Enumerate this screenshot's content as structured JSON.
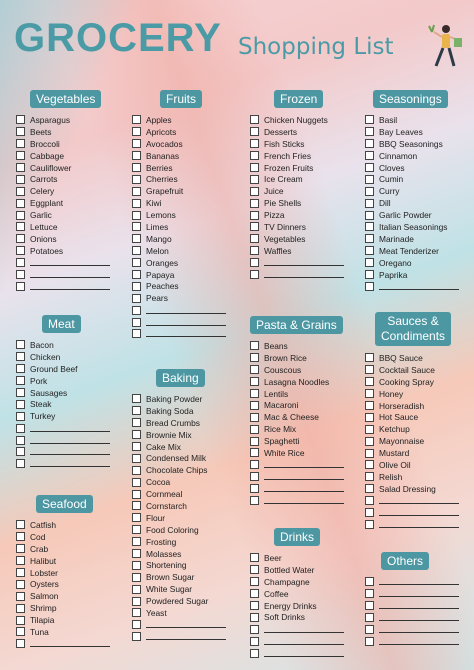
{
  "title": "GROCERY",
  "subtitle": "Shopping List",
  "sections": {
    "vegetables": {
      "title": "Vegetables",
      "items": [
        "Asparagus",
        "Beets",
        "Broccoli",
        "Cabbage",
        "Cauliflower",
        "Carrots",
        "Celery",
        "Eggplant",
        "Garlic",
        "Lettuce",
        "Onions",
        "Potatoes"
      ],
      "blank": 3
    },
    "fruits": {
      "title": "Fruits",
      "items": [
        "Apples",
        "Apricots",
        "Avocados",
        "Bananas",
        "Berries",
        "Cherries",
        "Grapefruit",
        "Kiwi",
        "Lemons",
        "Limes",
        "Mango",
        "Melon",
        "Oranges",
        "Papaya",
        "Peaches",
        "Pears"
      ],
      "blank": 3
    },
    "frozen": {
      "title": "Frozen",
      "items": [
        "Chicken Nuggets",
        "Desserts",
        "Fish Sticks",
        "French Fries",
        "Frozen Fruits",
        "Ice Cream",
        "Juice",
        "Pie Shells",
        "Pizza",
        "TV Dinners",
        "Vegetables",
        "Waffles"
      ],
      "blank": 2
    },
    "seasonings": {
      "title": "Seasonings",
      "items": [
        "Basil",
        "Bay Leaves",
        "BBQ Seasonings",
        "Cinnamon",
        "Cloves",
        "Cumin",
        "Curry",
        "Dill",
        "Garlic Powder",
        "Italian Seasonings",
        "Marinade",
        "Meat Tenderizer",
        "Oregano",
        "Paprika"
      ],
      "blank": 1
    },
    "meat": {
      "title": "Meat",
      "items": [
        "Bacon",
        "Chicken",
        "Ground Beef",
        "Pork",
        "Sausages",
        "Steak",
        "Turkey"
      ],
      "blank": 4
    },
    "baking": {
      "title": "Baking",
      "items": [
        "Baking Powder",
        "Baking Soda",
        "Bread Crumbs",
        "Brownie Mix",
        "Cake Mix",
        "Condensed Milk",
        "Chocolate Chips",
        "Cocoa",
        "Cornmeal",
        "Cornstarch",
        "Flour",
        "Food Coloring",
        "Frosting",
        "Molasses",
        "Shortening",
        "Brown Sugar",
        "White Sugar",
        "Powdered Sugar",
        "Yeast"
      ],
      "blank": 2
    },
    "pasta": {
      "title": "Pasta & Grains",
      "items": [
        "Beans",
        "Brown Rice",
        "Couscous",
        "Lasagna Noodles",
        "Lentils",
        "Macaroni",
        "Mac & Cheese",
        "Rice Mix",
        "Spaghetti",
        "White Rice"
      ],
      "blank": 4
    },
    "sauces": {
      "title": "Sauces & Condiments",
      "items": [
        "BBQ Sauce",
        "Cocktail Sauce",
        "Cooking Spray",
        "Honey",
        "Horseradish",
        "Hot Sauce",
        "Ketchup",
        "Mayonnaise",
        "Mustard",
        "Olive Oil",
        "Relish",
        "Salad Dressing"
      ],
      "blank": 3
    },
    "seafood": {
      "title": "Seafood",
      "items": [
        "Catfish",
        "Cod",
        "Crab",
        "Halibut",
        "Lobster",
        "Oysters",
        "Salmon",
        "Shrimp",
        "Tilapia",
        "Tuna"
      ],
      "blank": 1
    },
    "drinks": {
      "title": "Drinks",
      "items": [
        "Beer",
        "Bottled Water",
        "Champagne",
        "Coffee",
        "Energy Drinks",
        "Soft Drinks"
      ],
      "blank": 3
    },
    "others": {
      "title": "Others",
      "items": [],
      "blank": 6
    }
  },
  "colors": {
    "accent": "#4d97a3"
  }
}
